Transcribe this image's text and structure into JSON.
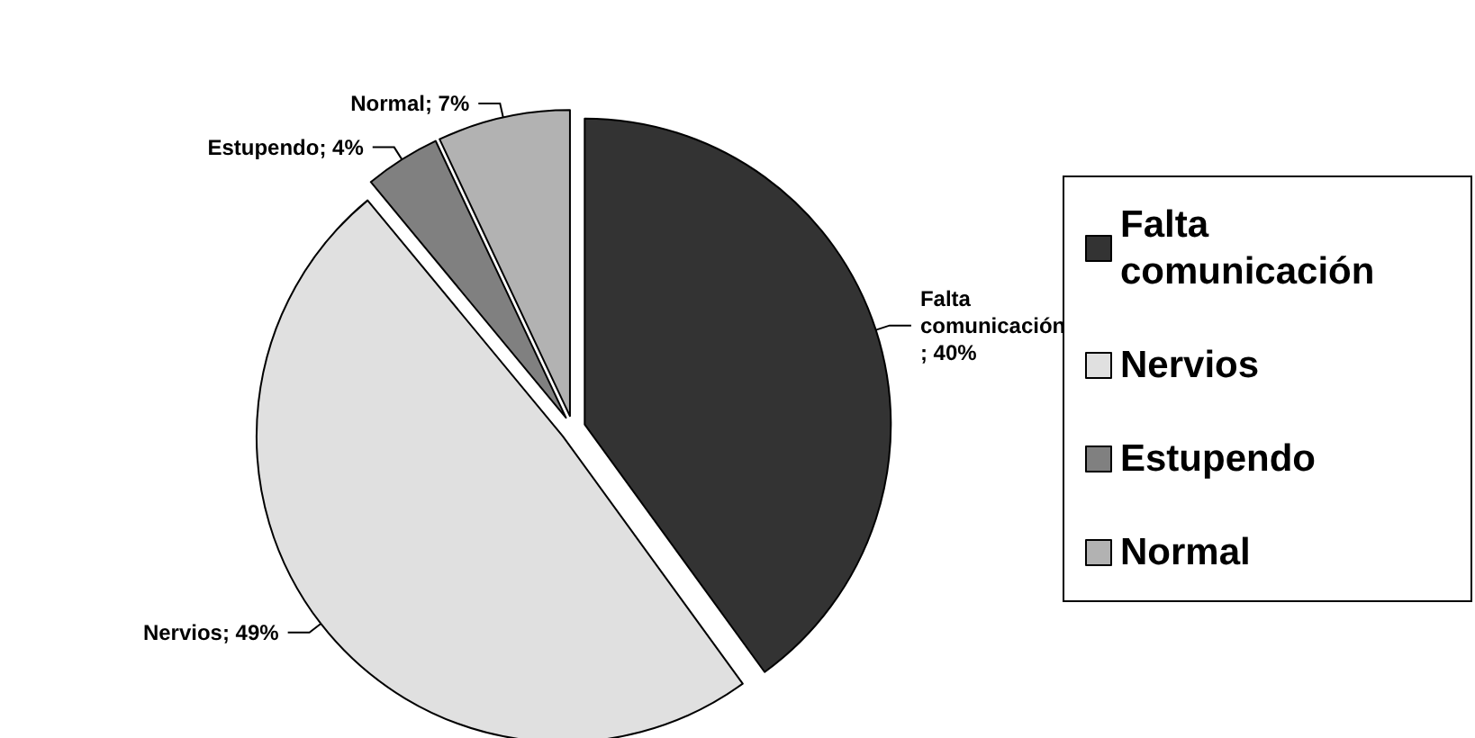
{
  "chart_data": {
    "type": "pie",
    "categories": [
      "Falta comunicación",
      "Nervios",
      "Estupendo",
      "Normal"
    ],
    "values": [
      40,
      49,
      4,
      7
    ],
    "value_labels": [
      "Falta comunicación; 40%",
      "Nervios; 49%",
      "Estupendo; 4%",
      "Normal; 7%"
    ],
    "colors": [
      "#333333",
      "#e0e0e0",
      "#808080",
      "#b2b2b2"
    ],
    "legend": "right"
  }
}
